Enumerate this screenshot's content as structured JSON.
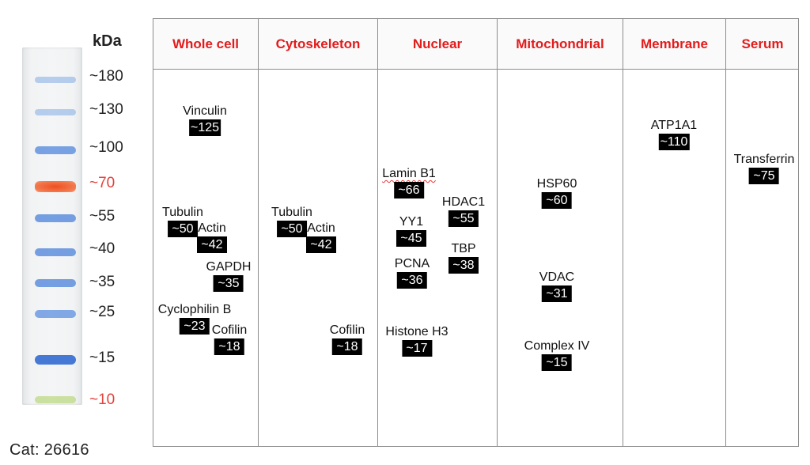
{
  "ladder": {
    "unit_label": "kDa",
    "catalog_label": "Cat:  26616",
    "markers": [
      "~180",
      "~130",
      "~100",
      "~70",
      "~55",
      "~40",
      "~35",
      "~25",
      "~15",
      "~10"
    ],
    "colors": {
      "blue": "#3f78d8",
      "orange": "#ee5a2c",
      "green": "#a8cf5a",
      "red_label": "#e3423a"
    }
  },
  "table": {
    "header_color": "#e31b1b",
    "columns": [
      "Whole cell",
      "Cytoskeleton",
      "Nuclear",
      "Mitochondrial",
      "Membrane",
      "Serum"
    ]
  },
  "proteins": {
    "whole_cell": [
      {
        "name": "Vinculin",
        "mw": "~125"
      },
      {
        "name": "Tubulin",
        "mw": "~50"
      },
      {
        "name": "Actin",
        "mw": "~42"
      },
      {
        "name": "GAPDH",
        "mw": "~35"
      },
      {
        "name": "Cyclophilin B",
        "mw": "~23"
      },
      {
        "name": "Cofilin",
        "mw": "~18"
      }
    ],
    "cytoskeleton": [
      {
        "name": "Tubulin",
        "mw": "~50"
      },
      {
        "name": "Actin",
        "mw": "~42"
      },
      {
        "name": "Cofilin",
        "mw": "~18"
      }
    ],
    "nuclear": [
      {
        "name": "Lamin B1",
        "mw": "~66"
      },
      {
        "name": "HDAC1",
        "mw": "~55"
      },
      {
        "name": "YY1",
        "mw": "~45"
      },
      {
        "name": "TBP",
        "mw": "~38"
      },
      {
        "name": "PCNA",
        "mw": "~36"
      },
      {
        "name": "Histone H3",
        "mw": "~17"
      }
    ],
    "mitochondrial": [
      {
        "name": "HSP60",
        "mw": "~60"
      },
      {
        "name": "VDAC",
        "mw": "~31"
      },
      {
        "name": "Complex IV",
        "mw": "~15"
      }
    ],
    "membrane": [
      {
        "name": "ATP1A1",
        "mw": "~110"
      }
    ],
    "serum": [
      {
        "name": "Transferrin",
        "mw": "~75"
      }
    ]
  }
}
